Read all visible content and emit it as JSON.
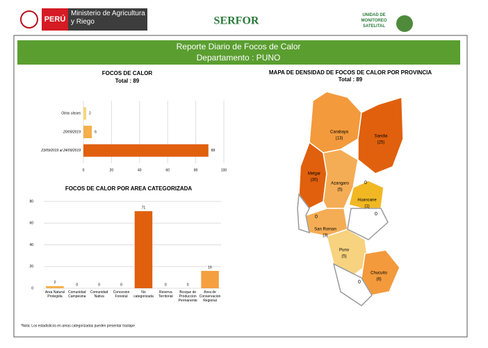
{
  "header": {
    "country": "PERÚ",
    "ministry": "Ministerio de Agricultura y Riego",
    "serfor": "SERFOR",
    "unit": "UNIDAD DE MONITOREO SATELITAL"
  },
  "banner": {
    "title": "Reporte Diario de Focos de Calor",
    "subtitle": "Departamento : PUNO"
  },
  "chart_data": [
    {
      "type": "hbar",
      "title": "FOCOS DE CALOR",
      "subtitle": "Total : 89",
      "categories": [
        "Otras clases",
        "20/09/2019",
        "23/09/2019 al 24/09/2019"
      ],
      "values": [
        2,
        6,
        89
      ],
      "colors": [
        "#f7d77a",
        "#f5b04c",
        "#e0600e"
      ],
      "xlim": [
        0,
        100
      ],
      "xticks": [
        0,
        20,
        40,
        60,
        80,
        100
      ],
      "grid": true
    },
    {
      "type": "bar",
      "title": "FOCOS DE CALOR POR AREA CATEGORIZADA",
      "categories": [
        "Area Natural Protegida",
        "Comunidad Campesina",
        "Comunidad Nativa",
        "Concesion Forestal",
        "No categorizada",
        "Reserva Territorial",
        "Bosque de Produccion Permanente",
        "Area de Conservacion Regional"
      ],
      "values": [
        2,
        0,
        0,
        0,
        71,
        0,
        0,
        16
      ],
      "colors": [
        "#f5b04c",
        "#f5b04c",
        "#f5b04c",
        "#f5b04c",
        "#e0600e",
        "#f5b04c",
        "#f5b04c",
        "#f5a040"
      ],
      "ylim": [
        0,
        80
      ],
      "yticks": [
        0,
        20,
        40,
        60,
        80
      ],
      "grid": true,
      "note": "*Nota: Los estadisticos en areas categorizadas pueden presentar traslape"
    }
  ],
  "map": {
    "title": "MAPA DE DENSIDAD DE FOCOS DE CALOR POR PROVINCIA",
    "subtitle": "Total : 89",
    "provinces": [
      {
        "name": "Carabaya",
        "label": "(13)"
      },
      {
        "name": "Sandia",
        "label": "(25)"
      },
      {
        "name": "Melgar",
        "label": "(30)"
      },
      {
        "name": "Azangaro",
        "label": "(5)"
      },
      {
        "name": "Huancane",
        "label": "(1)"
      },
      {
        "name": "San Roman",
        "label": "(3)"
      },
      {
        "name": "Puno",
        "label": "(5)"
      },
      {
        "name": "Chucuito",
        "label": "(6)"
      }
    ],
    "zeros": [
      "0",
      "0",
      "0",
      "0"
    ]
  }
}
